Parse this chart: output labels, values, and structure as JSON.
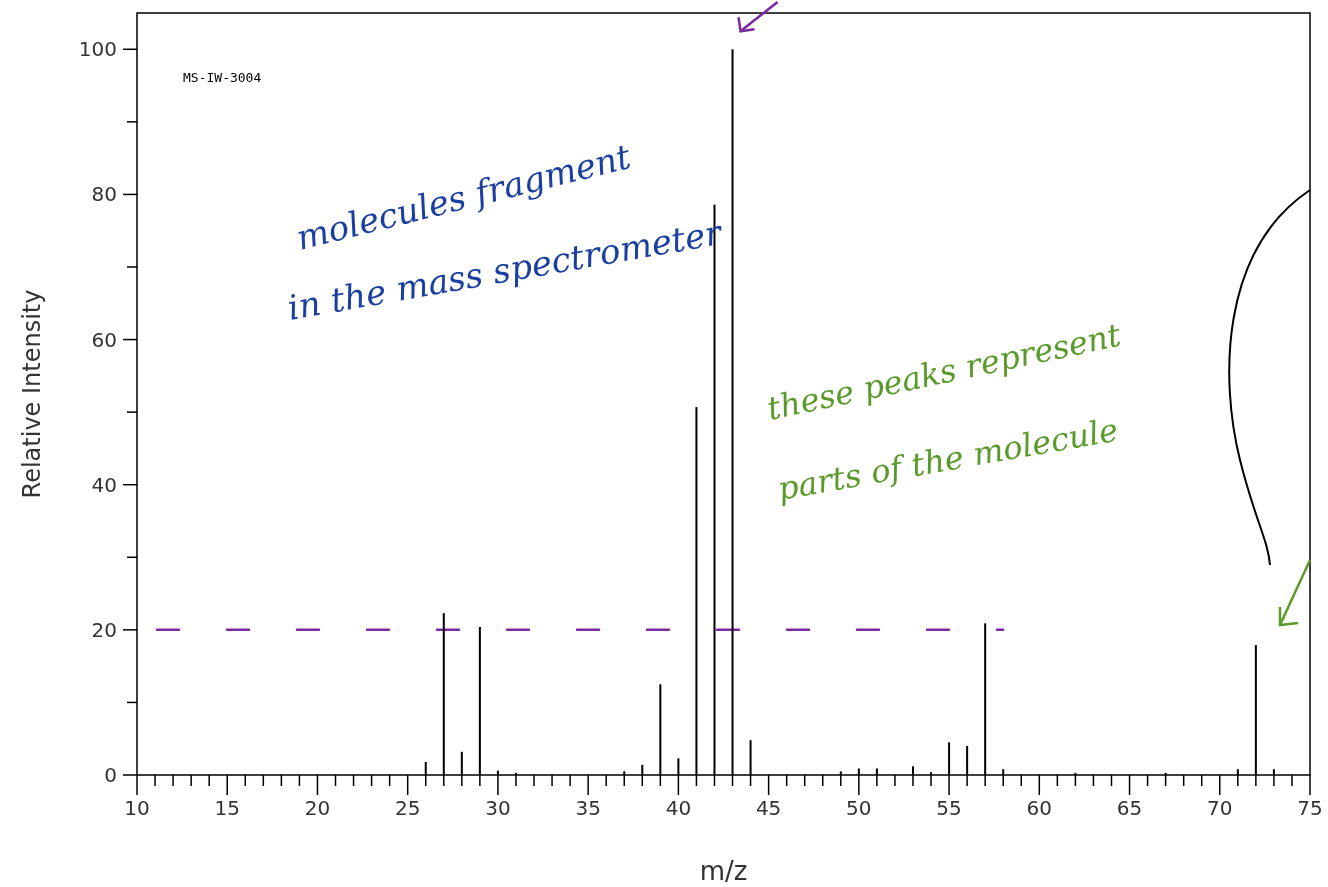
{
  "chart_data": {
    "type": "bar",
    "xlabel": "m/z",
    "ylabel": "Relative Intensity",
    "x": [
      26,
      27,
      28,
      29,
      30,
      31,
      37,
      38,
      39,
      40,
      41,
      42,
      43,
      44,
      49,
      50,
      51,
      53,
      54,
      55,
      56,
      57,
      58,
      62,
      67,
      71,
      72,
      73
    ],
    "values": [
      1.8,
      22.3,
      3.2,
      20.4,
      0.6,
      0.3,
      0.5,
      1.4,
      12.5,
      2.3,
      50.7,
      78.6,
      100,
      4.8,
      0.5,
      0.9,
      0.9,
      1.2,
      0.4,
      4.5,
      4.0,
      20.9,
      0.8,
      0.3,
      0.3,
      0.8,
      17.9,
      0.8
    ],
    "color": "#000000",
    "xlim": [
      10,
      75
    ],
    "xticks": [
      10,
      {
        "value": 11,
        "label": null
      },
      {
        "value": 12,
        "label": null
      },
      {
        "value": 13,
        "label": null
      },
      {
        "value": 14,
        "label": null
      },
      15,
      {
        "value": 16,
        "label": null
      },
      {
        "value": 17,
        "label": null
      },
      {
        "value": 18,
        "label": null
      },
      {
        "value": 19,
        "label": null
      },
      20,
      {
        "value": 21,
        "label": null
      },
      {
        "value": 22,
        "label": null
      },
      {
        "value": 23,
        "label": null
      },
      {
        "value": 24,
        "label": null
      },
      25,
      {
        "value": 26,
        "label": null
      },
      {
        "value": 27,
        "label": null
      },
      {
        "value": 28,
        "label": null
      },
      {
        "value": 29,
        "label": null
      },
      30,
      {
        "value": 31,
        "label": null
      },
      {
        "value": 32,
        "label": null
      },
      {
        "value": 33,
        "label": null
      },
      {
        "value": 34,
        "label": null
      },
      35,
      {
        "value": 36,
        "label": null
      },
      {
        "value": 37,
        "label": null
      },
      {
        "value": 38,
        "label": null
      },
      {
        "value": 39,
        "label": null
      },
      40,
      {
        "value": 41,
        "label": null
      },
      {
        "value": 42,
        "label": null
      },
      {
        "value": 43,
        "label": null
      },
      {
        "value": 44,
        "label": null
      },
      45,
      {
        "value": 46,
        "label": null
      },
      {
        "value": 47,
        "label": null
      },
      {
        "value": 48,
        "label": null
      },
      {
        "value": 49,
        "label": null
      },
      50,
      {
        "value": 51,
        "label": null
      },
      {
        "value": 52,
        "label": null
      },
      {
        "value": 53,
        "label": null
      },
      {
        "value": 54,
        "label": null
      },
      55,
      {
        "value": 56,
        "label": null
      },
      {
        "value": 57,
        "label": null
      },
      {
        "value": 58,
        "label": null
      },
      {
        "value": 59,
        "label": null
      },
      60,
      {
        "value": 61,
        "label": null
      },
      {
        "value": 62,
        "label": null
      },
      {
        "value": 63,
        "label": null
      },
      {
        "value": 64,
        "label": null
      },
      65,
      {
        "value": 66,
        "label": null
      },
      {
        "value": 67,
        "label": null
      },
      {
        "value": 68,
        "label": null
      },
      {
        "value": 69,
        "label": null
      },
      70,
      {
        "value": 71,
        "label": null
      },
      {
        "value": 72,
        "label": null
      },
      {
        "value": 73,
        "label": null
      },
      {
        "value": 74,
        "label": null
      },
      75
    ],
    "ylim": [
      0,
      105
    ],
    "yticks": [
      0,
      {
        "value": 10,
        "label": null
      },
      20,
      {
        "value": 30,
        "label": null
      },
      40,
      {
        "value": 50,
        "label": null
      },
      60,
      {
        "value": 70,
        "label": null
      },
      80,
      {
        "value": 90,
        "label": null
      },
      100
    ],
    "ref_lines": [
      {
        "axis": "y",
        "value": 20,
        "color": "#7a2aa0",
        "line_style": "dashed"
      }
    ],
    "annotations": [
      "MS-IW-3004",
      {
        "text": "molecules fragment in the mass spectrometer",
        "x": 43,
        "y": 100
      },
      "these peaks represent parts of the molecule"
    ]
  }
}
